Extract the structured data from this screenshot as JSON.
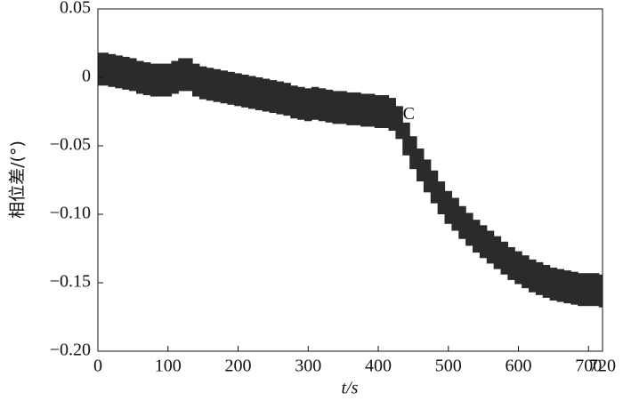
{
  "chart_data": {
    "type": "range",
    "xlabel": "t/s",
    "ylabel": "相位差/(°)",
    "annotation": {
      "text": "C",
      "x": 430,
      "y": -0.03
    },
    "color": "#2b2b2b",
    "xlim": [
      0,
      720
    ],
    "xticks": [
      0,
      100,
      200,
      300,
      400,
      500,
      600,
      700,
      720
    ],
    "ylim": [
      -0.2,
      0.05
    ],
    "yticks": [
      {
        "value": -0.2,
        "label": "−0.20"
      },
      {
        "value": -0.15,
        "label": "−0.15"
      },
      {
        "value": -0.1,
        "label": "−0.10"
      },
      {
        "value": -0.05,
        "label": "−0.05"
      },
      0,
      0.05
    ],
    "x": [
      0,
      10,
      20,
      30,
      40,
      50,
      60,
      70,
      80,
      90,
      100,
      110,
      120,
      130,
      140,
      150,
      160,
      170,
      180,
      190,
      200,
      210,
      220,
      230,
      240,
      250,
      260,
      270,
      280,
      290,
      300,
      310,
      320,
      330,
      340,
      350,
      360,
      370,
      380,
      390,
      400,
      410,
      420,
      430,
      440,
      450,
      460,
      470,
      480,
      490,
      500,
      510,
      520,
      530,
      540,
      550,
      560,
      570,
      580,
      590,
      600,
      610,
      620,
      630,
      640,
      650,
      660,
      670,
      680,
      690,
      700,
      710,
      720
    ],
    "upper": [
      0.018,
      0.018,
      0.017,
      0.016,
      0.015,
      0.014,
      0.012,
      0.011,
      0.01,
      0.01,
      0.01,
      0.012,
      0.014,
      0.014,
      0.01,
      0.008,
      0.007,
      0.006,
      0.005,
      0.004,
      0.003,
      0.002,
      0.001,
      0,
      -0.001,
      -0.002,
      -0.003,
      -0.004,
      -0.006,
      -0.007,
      -0.008,
      -0.007,
      -0.008,
      -0.009,
      -0.01,
      -0.01,
      -0.011,
      -0.011,
      -0.012,
      -0.012,
      -0.013,
      -0.013,
      -0.015,
      -0.021,
      -0.033,
      -0.043,
      -0.052,
      -0.06,
      -0.068,
      -0.076,
      -0.083,
      -0.088,
      -0.094,
      -0.099,
      -0.104,
      -0.108,
      -0.112,
      -0.116,
      -0.12,
      -0.124,
      -0.127,
      -0.13,
      -0.133,
      -0.135,
      -0.137,
      -0.139,
      -0.14,
      -0.141,
      -0.142,
      -0.143,
      -0.143,
      -0.143,
      -0.144
    ],
    "lower": [
      -0.006,
      -0.006,
      -0.007,
      -0.008,
      -0.009,
      -0.01,
      -0.012,
      -0.013,
      -0.014,
      -0.014,
      -0.014,
      -0.012,
      -0.01,
      -0.01,
      -0.014,
      -0.016,
      -0.017,
      -0.018,
      -0.019,
      -0.02,
      -0.021,
      -0.022,
      -0.023,
      -0.024,
      -0.025,
      -0.026,
      -0.027,
      -0.028,
      -0.03,
      -0.031,
      -0.032,
      -0.031,
      -0.032,
      -0.033,
      -0.034,
      -0.034,
      -0.035,
      -0.035,
      -0.036,
      -0.036,
      -0.037,
      -0.037,
      -0.039,
      -0.045,
      -0.057,
      -0.067,
      -0.076,
      -0.084,
      -0.092,
      -0.1,
      -0.107,
      -0.112,
      -0.118,
      -0.123,
      -0.128,
      -0.132,
      -0.136,
      -0.14,
      -0.144,
      -0.148,
      -0.151,
      -0.154,
      -0.157,
      -0.159,
      -0.161,
      -0.163,
      -0.164,
      -0.165,
      -0.166,
      -0.167,
      -0.167,
      -0.167,
      -0.168
    ]
  }
}
